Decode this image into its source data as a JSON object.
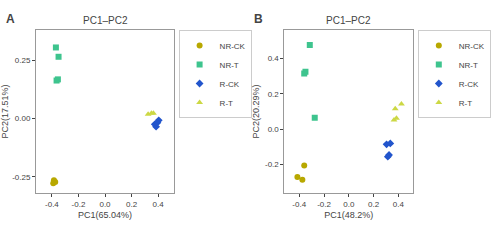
{
  "chart_data": [
    {
      "type": "scatter",
      "label": "A",
      "title": "PC1–PC2",
      "xlabel": "PC1(65.04%)",
      "ylabel": "PC2(17.51%)",
      "xlim": [
        -0.52,
        0.52
      ],
      "ylim": [
        -0.32,
        0.38
      ],
      "xticks": [
        -0.4,
        -0.2,
        {
          "value": 0.0,
          "label": "0.0"
        },
        0.2,
        0.4
      ],
      "yticks": [
        -0.25,
        {
          "value": 0.0,
          "label": "0.00"
        },
        0.25
      ],
      "grid": false,
      "legend": "right",
      "series": [
        {
          "name": "NR-CK",
          "color": "#b8a800",
          "marker": "circle",
          "x": [
            -0.385,
            -0.375,
            -0.39
          ],
          "values": [
            -0.265,
            -0.273,
            -0.278
          ]
        },
        {
          "name": "NR-T",
          "color": "#3ec48e",
          "marker": "square",
          "x": [
            -0.37,
            -0.35,
            -0.365,
            -0.355
          ],
          "values": [
            0.305,
            0.265,
            0.163,
            0.168
          ]
        },
        {
          "name": "R-CK",
          "color": "#2255cc",
          "marker": "diamond",
          "x": [
            0.385,
            0.405,
            0.375,
            0.395
          ],
          "values": [
            -0.035,
            -0.008,
            -0.025,
            -0.018
          ]
        },
        {
          "name": "R-T",
          "color": "#ccd844",
          "marker": "triangle-up",
          "x": [
            0.325,
            0.35,
            0.365
          ],
          "values": [
            0.018,
            0.022,
            0.022
          ]
        }
      ]
    },
    {
      "type": "scatter",
      "label": "B",
      "title": "PC1–PC2",
      "xlabel": "PC1(48.2%)",
      "ylabel": "PC2(20.29%)",
      "xlim": [
        -0.52,
        0.52
      ],
      "ylim": [
        -0.36,
        0.56
      ],
      "xticks": [
        -0.4,
        -0.2,
        {
          "value": 0.0,
          "label": "0.0"
        },
        0.2,
        0.4
      ],
      "yticks": [
        -0.2,
        {
          "value": 0.0,
          "label": "0.0"
        },
        0.2,
        0.4
      ],
      "grid": false,
      "legend": "right",
      "series": [
        {
          "name": "NR-CK",
          "color": "#b8a800",
          "marker": "circle",
          "x": [
            -0.415,
            -0.375,
            -0.36
          ],
          "values": [
            -0.27,
            -0.285,
            -0.205
          ]
        },
        {
          "name": "NR-T",
          "color": "#3ec48e",
          "marker": "square",
          "x": [
            -0.315,
            -0.35,
            -0.36,
            -0.275
          ],
          "values": [
            0.475,
            0.325,
            0.315,
            0.065
          ]
        },
        {
          "name": "R-CK",
          "color": "#2255cc",
          "marker": "diamond",
          "x": [
            0.305,
            0.335,
            0.325,
            0.315
          ],
          "values": [
            -0.085,
            -0.08,
            -0.145,
            -0.155
          ]
        },
        {
          "name": "R-T",
          "color": "#ccd844",
          "marker": "triangle-up",
          "x": [
            0.375,
            0.385,
            0.365,
            0.425
          ],
          "values": [
            0.115,
            0.062,
            0.052,
            0.142
          ]
        }
      ]
    }
  ]
}
